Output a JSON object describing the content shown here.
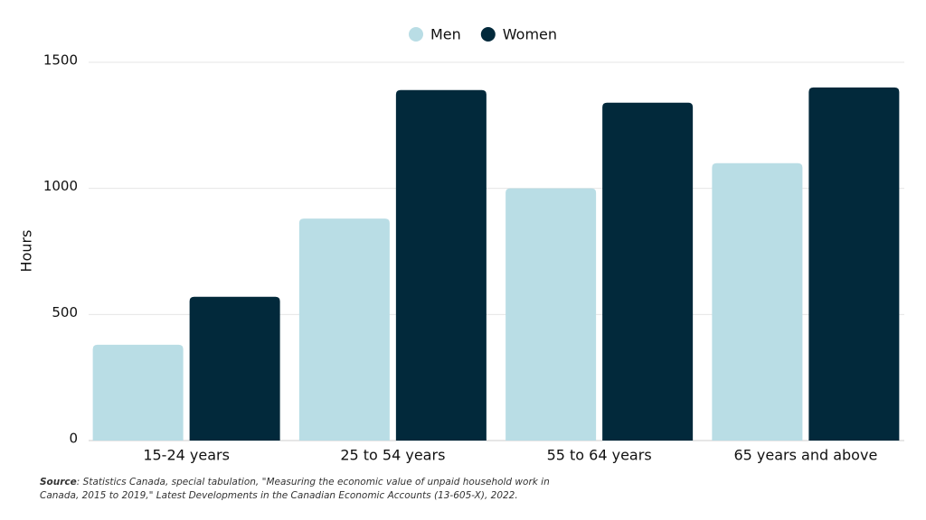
{
  "chart_data": {
    "type": "bar",
    "y_label": "Hours",
    "categories": [
      "15-24 years",
      "25 to 54 years",
      "55 to 64 years",
      "65 years and above"
    ],
    "series": [
      {
        "name": "Men",
        "color": "#b9dde5",
        "values": [
          380,
          880,
          1000,
          1100
        ]
      },
      {
        "name": "Women",
        "color": "#02293b",
        "values": [
          570,
          1390,
          1340,
          1400
        ]
      }
    ],
    "ylim": [
      0,
      1500
    ],
    "yticks": [
      0,
      500,
      1000,
      1500
    ],
    "grid": true,
    "legend": "top",
    "source_label": "Source",
    "source_text": ": Statistics Canada, special tabulation, \"Measuring the economic value of unpaid household work in Canada, 2015 to 2019,\" Latest Developments in the Canadian Economic Accounts (13-605-X), 2022."
  }
}
